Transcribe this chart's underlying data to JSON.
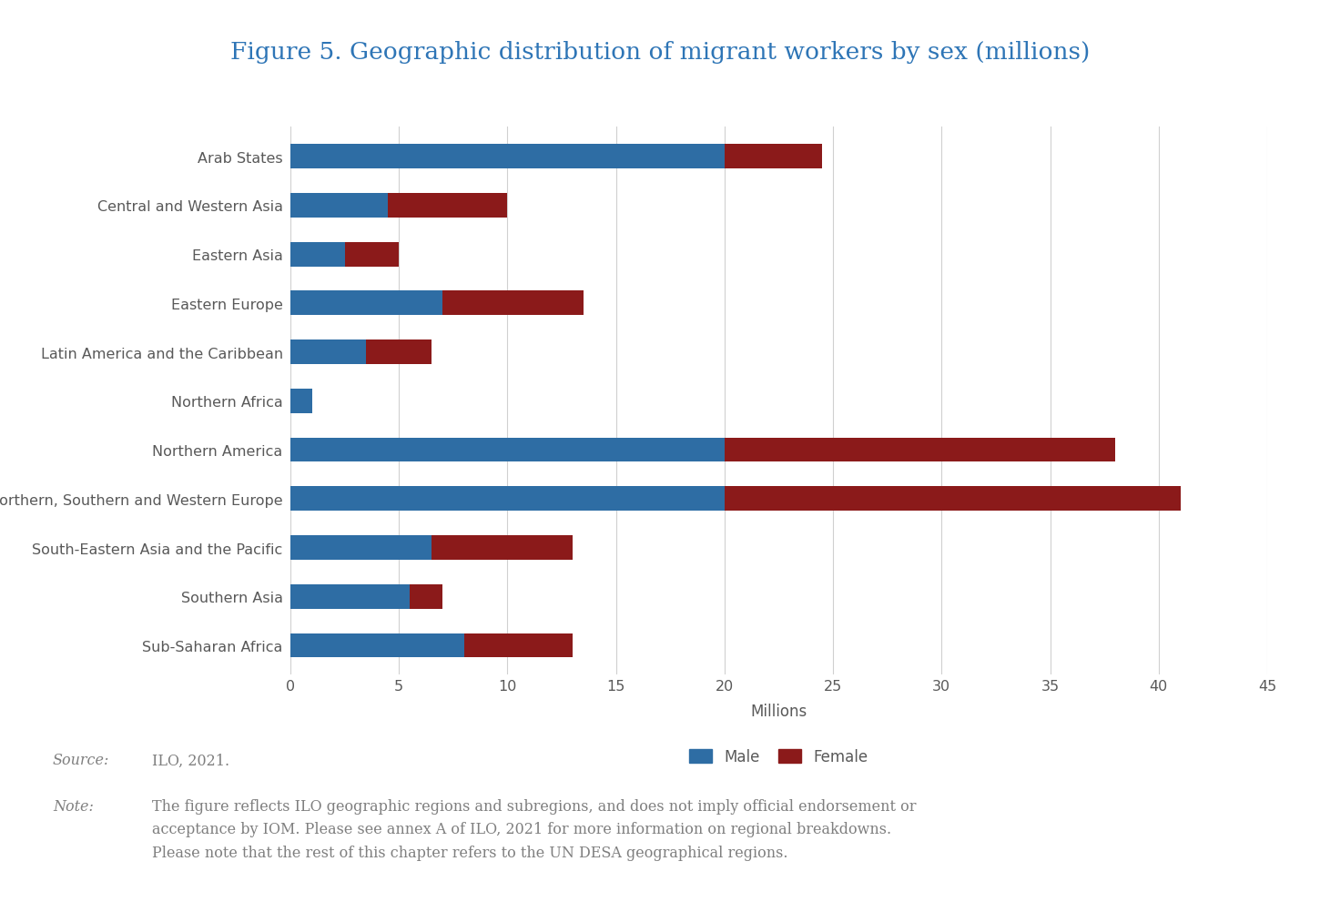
{
  "title": "Figure 5. Geographic distribution of migrant workers by sex (millions)",
  "categories": [
    "Arab States",
    "Central and Western Asia",
    "Eastern Asia",
    "Eastern Europe",
    "Latin America and the Caribbean",
    "Northern Africa",
    "Northern America",
    "Northern, Southern and Western Europe",
    "South-Eastern Asia and the Pacific",
    "Southern Asia",
    "Sub-Saharan Africa"
  ],
  "male": [
    20.0,
    4.5,
    2.5,
    7.0,
    3.5,
    1.0,
    20.0,
    20.0,
    6.5,
    5.5,
    8.0
  ],
  "female": [
    4.5,
    5.5,
    2.5,
    6.5,
    3.0,
    0.0,
    18.0,
    21.0,
    6.5,
    1.5,
    5.0
  ],
  "male_color": "#2E6DA4",
  "female_color": "#8B1A1A",
  "title_color": "#2E75B6",
  "axis_label_color": "#595959",
  "grid_color": "#d0d0d0",
  "xlim": [
    0,
    45
  ],
  "xticks": [
    0,
    5,
    10,
    15,
    20,
    25,
    30,
    35,
    40,
    45
  ],
  "xlabel": "Millions",
  "background_color": "#ffffff",
  "bar_height": 0.5,
  "title_fontsize": 19,
  "tick_fontsize": 11.5,
  "label_fontsize": 12,
  "legend_fontsize": 12,
  "note_fontsize": 11.5,
  "source_fontsize": 11.5
}
